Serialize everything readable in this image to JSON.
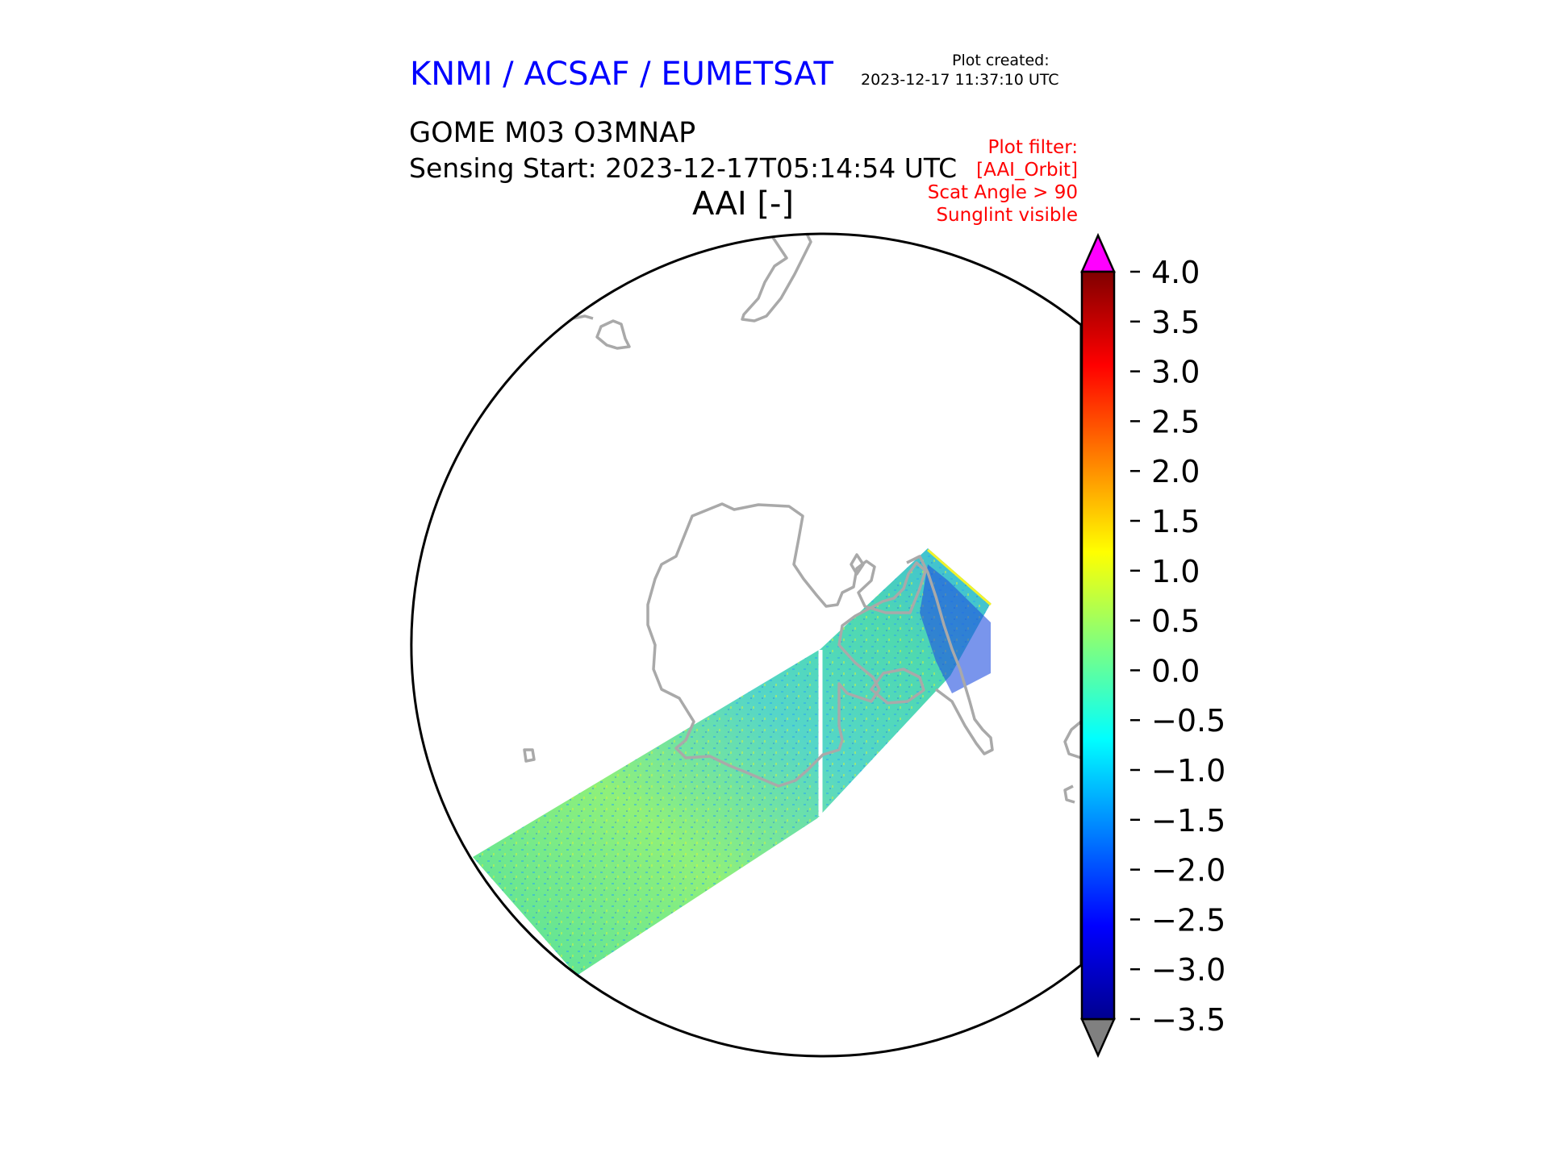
{
  "header": {
    "agency": "KNMI / ACSAF / EUMETSAT",
    "created_label": "Plot created:",
    "created_time": "2023-12-17 11:37:10 UTC",
    "product": "GOME M03 O3MNAP",
    "sensing_start": "Sensing Start: 2023-12-17T05:14:54 UTC",
    "variable_title": "AAI [-]"
  },
  "filter": {
    "label": "Plot filter:",
    "items": [
      "[AAI_Orbit]",
      "Scat Angle > 90",
      "Sunglint visible"
    ]
  },
  "colorbar": {
    "ticks": [
      "4.0",
      "3.5",
      "3.0",
      "2.5",
      "2.0",
      "1.5",
      "1.0",
      "0.5",
      "0.0",
      "−0.5",
      "−1.0",
      "−1.5",
      "−2.0",
      "−2.5",
      "−3.0",
      "−3.5"
    ],
    "min": -3.5,
    "max": 4.0,
    "over_color": "#ff00ff",
    "under_color": "#808080"
  },
  "colors": {
    "agency": "#0000ff",
    "filter": "#ff0000",
    "coastline": "#a9a9a9",
    "swath_base": "#5ee3a8"
  }
}
